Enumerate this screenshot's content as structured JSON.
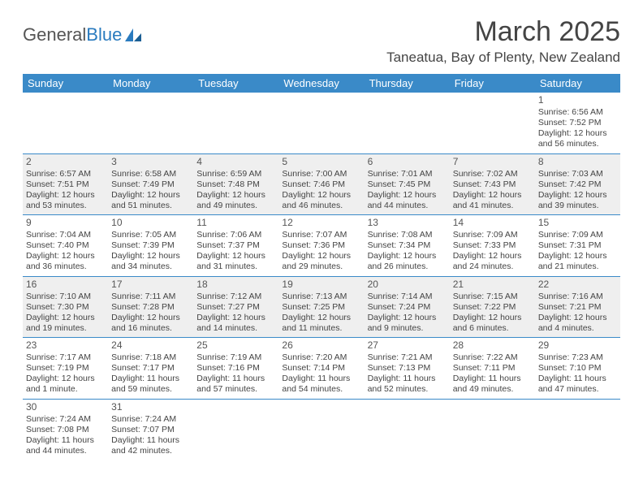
{
  "brand": {
    "part1": "General",
    "part2": "Blue"
  },
  "title": "March 2025",
  "location": "Taneatua, Bay of Plenty, New Zealand",
  "colors": {
    "header_bg": "#3a8ac8",
    "header_fg": "#ffffff",
    "cell_border": "#3a8ac8",
    "shaded_bg": "#efefef",
    "text": "#444444"
  },
  "weekdays": [
    "Sunday",
    "Monday",
    "Tuesday",
    "Wednesday",
    "Thursday",
    "Friday",
    "Saturday"
  ],
  "weeks": [
    [
      null,
      null,
      null,
      null,
      null,
      null,
      {
        "n": "1",
        "sr": "Sunrise: 6:56 AM",
        "ss": "Sunset: 7:52 PM",
        "dl": "Daylight: 12 hours and 56 minutes."
      }
    ],
    [
      {
        "n": "2",
        "sr": "Sunrise: 6:57 AM",
        "ss": "Sunset: 7:51 PM",
        "dl": "Daylight: 12 hours and 53 minutes."
      },
      {
        "n": "3",
        "sr": "Sunrise: 6:58 AM",
        "ss": "Sunset: 7:49 PM",
        "dl": "Daylight: 12 hours and 51 minutes."
      },
      {
        "n": "4",
        "sr": "Sunrise: 6:59 AM",
        "ss": "Sunset: 7:48 PM",
        "dl": "Daylight: 12 hours and 49 minutes."
      },
      {
        "n": "5",
        "sr": "Sunrise: 7:00 AM",
        "ss": "Sunset: 7:46 PM",
        "dl": "Daylight: 12 hours and 46 minutes."
      },
      {
        "n": "6",
        "sr": "Sunrise: 7:01 AM",
        "ss": "Sunset: 7:45 PM",
        "dl": "Daylight: 12 hours and 44 minutes."
      },
      {
        "n": "7",
        "sr": "Sunrise: 7:02 AM",
        "ss": "Sunset: 7:43 PM",
        "dl": "Daylight: 12 hours and 41 minutes."
      },
      {
        "n": "8",
        "sr": "Sunrise: 7:03 AM",
        "ss": "Sunset: 7:42 PM",
        "dl": "Daylight: 12 hours and 39 minutes."
      }
    ],
    [
      {
        "n": "9",
        "sr": "Sunrise: 7:04 AM",
        "ss": "Sunset: 7:40 PM",
        "dl": "Daylight: 12 hours and 36 minutes."
      },
      {
        "n": "10",
        "sr": "Sunrise: 7:05 AM",
        "ss": "Sunset: 7:39 PM",
        "dl": "Daylight: 12 hours and 34 minutes."
      },
      {
        "n": "11",
        "sr": "Sunrise: 7:06 AM",
        "ss": "Sunset: 7:37 PM",
        "dl": "Daylight: 12 hours and 31 minutes."
      },
      {
        "n": "12",
        "sr": "Sunrise: 7:07 AM",
        "ss": "Sunset: 7:36 PM",
        "dl": "Daylight: 12 hours and 29 minutes."
      },
      {
        "n": "13",
        "sr": "Sunrise: 7:08 AM",
        "ss": "Sunset: 7:34 PM",
        "dl": "Daylight: 12 hours and 26 minutes."
      },
      {
        "n": "14",
        "sr": "Sunrise: 7:09 AM",
        "ss": "Sunset: 7:33 PM",
        "dl": "Daylight: 12 hours and 24 minutes."
      },
      {
        "n": "15",
        "sr": "Sunrise: 7:09 AM",
        "ss": "Sunset: 7:31 PM",
        "dl": "Daylight: 12 hours and 21 minutes."
      }
    ],
    [
      {
        "n": "16",
        "sr": "Sunrise: 7:10 AM",
        "ss": "Sunset: 7:30 PM",
        "dl": "Daylight: 12 hours and 19 minutes."
      },
      {
        "n": "17",
        "sr": "Sunrise: 7:11 AM",
        "ss": "Sunset: 7:28 PM",
        "dl": "Daylight: 12 hours and 16 minutes."
      },
      {
        "n": "18",
        "sr": "Sunrise: 7:12 AM",
        "ss": "Sunset: 7:27 PM",
        "dl": "Daylight: 12 hours and 14 minutes."
      },
      {
        "n": "19",
        "sr": "Sunrise: 7:13 AM",
        "ss": "Sunset: 7:25 PM",
        "dl": "Daylight: 12 hours and 11 minutes."
      },
      {
        "n": "20",
        "sr": "Sunrise: 7:14 AM",
        "ss": "Sunset: 7:24 PM",
        "dl": "Daylight: 12 hours and 9 minutes."
      },
      {
        "n": "21",
        "sr": "Sunrise: 7:15 AM",
        "ss": "Sunset: 7:22 PM",
        "dl": "Daylight: 12 hours and 6 minutes."
      },
      {
        "n": "22",
        "sr": "Sunrise: 7:16 AM",
        "ss": "Sunset: 7:21 PM",
        "dl": "Daylight: 12 hours and 4 minutes."
      }
    ],
    [
      {
        "n": "23",
        "sr": "Sunrise: 7:17 AM",
        "ss": "Sunset: 7:19 PM",
        "dl": "Daylight: 12 hours and 1 minute."
      },
      {
        "n": "24",
        "sr": "Sunrise: 7:18 AM",
        "ss": "Sunset: 7:17 PM",
        "dl": "Daylight: 11 hours and 59 minutes."
      },
      {
        "n": "25",
        "sr": "Sunrise: 7:19 AM",
        "ss": "Sunset: 7:16 PM",
        "dl": "Daylight: 11 hours and 57 minutes."
      },
      {
        "n": "26",
        "sr": "Sunrise: 7:20 AM",
        "ss": "Sunset: 7:14 PM",
        "dl": "Daylight: 11 hours and 54 minutes."
      },
      {
        "n": "27",
        "sr": "Sunrise: 7:21 AM",
        "ss": "Sunset: 7:13 PM",
        "dl": "Daylight: 11 hours and 52 minutes."
      },
      {
        "n": "28",
        "sr": "Sunrise: 7:22 AM",
        "ss": "Sunset: 7:11 PM",
        "dl": "Daylight: 11 hours and 49 minutes."
      },
      {
        "n": "29",
        "sr": "Sunrise: 7:23 AM",
        "ss": "Sunset: 7:10 PM",
        "dl": "Daylight: 11 hours and 47 minutes."
      }
    ],
    [
      {
        "n": "30",
        "sr": "Sunrise: 7:24 AM",
        "ss": "Sunset: 7:08 PM",
        "dl": "Daylight: 11 hours and 44 minutes."
      },
      {
        "n": "31",
        "sr": "Sunrise: 7:24 AM",
        "ss": "Sunset: 7:07 PM",
        "dl": "Daylight: 11 hours and 42 minutes."
      },
      null,
      null,
      null,
      null,
      null
    ]
  ],
  "shaded_rows": [
    1,
    3
  ]
}
